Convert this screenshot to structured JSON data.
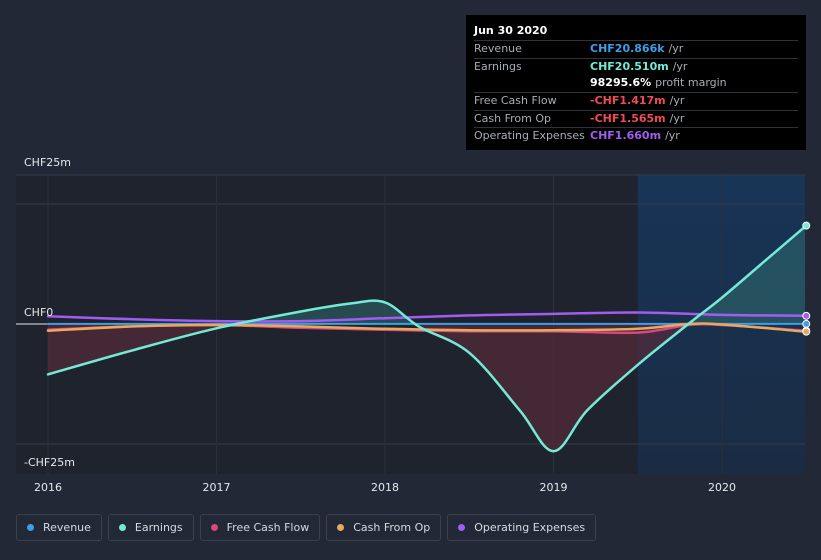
{
  "tooltip": {
    "date": "Jun 30 2020",
    "rows": [
      {
        "label": "Revenue",
        "value": "CHF20.866k",
        "unit": "/yr",
        "color": "#3d9fe8"
      },
      {
        "label": "Earnings",
        "value": "CHF20.510m",
        "unit": "/yr",
        "color": "#74ead6"
      },
      {
        "label": "",
        "value": "98295.6%",
        "unit": "profit margin",
        "color": "#ffffff"
      },
      {
        "label": "Free Cash Flow",
        "value": "-CHF1.417m",
        "unit": "/yr",
        "color": "#ef4b57"
      },
      {
        "label": "Cash From Op",
        "value": "-CHF1.565m",
        "unit": "/yr",
        "color": "#ef4b57"
      },
      {
        "label": "Operating Expenses",
        "value": "CHF1.660m",
        "unit": "/yr",
        "color": "#a35cf1"
      }
    ]
  },
  "legend": [
    {
      "label": "Revenue",
      "color": "#3d9fe8"
    },
    {
      "label": "Earnings",
      "color": "#74ead6"
    },
    {
      "label": "Free Cash Flow",
      "color": "#d9477d"
    },
    {
      "label": "Cash From Op",
      "color": "#e7a95d"
    },
    {
      "label": "Operating Expenses",
      "color": "#a35cf1"
    }
  ],
  "chart_data": {
    "type": "line",
    "title": "",
    "xlabel": "",
    "ylabel": "",
    "y_tick_labels": [
      "CHF25m",
      "CHF0",
      "-CHF25m"
    ],
    "y_tick_values": [
      25,
      0,
      -25
    ],
    "x_tick_labels": [
      "2016",
      "2017",
      "2018",
      "2019",
      "2020"
    ],
    "x_tick_values": [
      2016,
      2017,
      2018,
      2019,
      2020
    ],
    "xlim": [
      2015.8,
      2020.5
    ],
    "ylim": [
      -30,
      30
    ],
    "forecast_shade_start": 2019.5,
    "grid": true,
    "legend_position": "bottom",
    "series": [
      {
        "name": "Revenue",
        "color": "#3d9fe8",
        "points": [
          [
            2016,
            0.02
          ],
          [
            2017,
            0.02
          ],
          [
            2018,
            0.02
          ],
          [
            2019,
            0.02
          ],
          [
            2019.5,
            0.02
          ],
          [
            2020,
            0.02
          ],
          [
            2020.5,
            0.02
          ]
        ]
      },
      {
        "name": "Earnings",
        "color": "#74ead6",
        "fill": true,
        "points": [
          [
            2016,
            -10.5
          ],
          [
            2016.5,
            -5.5
          ],
          [
            2017,
            -0.9
          ],
          [
            2017.5,
            2.6
          ],
          [
            2017.8,
            4.3
          ],
          [
            2018,
            4.5
          ],
          [
            2018.2,
            -0.5
          ],
          [
            2018.5,
            -6
          ],
          [
            2018.8,
            -18
          ],
          [
            2019,
            -26.5
          ],
          [
            2019.2,
            -18
          ],
          [
            2019.5,
            -8.5
          ],
          [
            2019.8,
            0
          ],
          [
            2020,
            5.5
          ],
          [
            2020.25,
            13
          ],
          [
            2020.5,
            20.5
          ]
        ]
      },
      {
        "name": "Free Cash Flow",
        "color": "#d9477d",
        "points": [
          [
            2016,
            -1.2
          ],
          [
            2016.5,
            -0.5
          ],
          [
            2017,
            -0.2
          ],
          [
            2017.5,
            -0.8
          ],
          [
            2018,
            -1.2
          ],
          [
            2018.5,
            -1.5
          ],
          [
            2019,
            -1.5
          ],
          [
            2019.5,
            -1.8
          ],
          [
            2019.8,
            -0.2
          ],
          [
            2020,
            -0.2
          ],
          [
            2020.5,
            -1.4
          ]
        ]
      },
      {
        "name": "Cash From Op",
        "color": "#e7a95d",
        "points": [
          [
            2016,
            -1.4
          ],
          [
            2016.5,
            -0.5
          ],
          [
            2017,
            -0.2
          ],
          [
            2017.5,
            -0.5
          ],
          [
            2018,
            -1.0
          ],
          [
            2018.5,
            -1.3
          ],
          [
            2019,
            -1.3
          ],
          [
            2019.5,
            -1.0
          ],
          [
            2019.8,
            0.0
          ],
          [
            2020,
            -0.1
          ],
          [
            2020.5,
            -1.6
          ]
        ]
      },
      {
        "name": "Operating Expenses",
        "color": "#a35cf1",
        "points": [
          [
            2016,
            1.6
          ],
          [
            2016.5,
            1.0
          ],
          [
            2017,
            0.6
          ],
          [
            2017.5,
            0.6
          ],
          [
            2018,
            1.2
          ],
          [
            2018.5,
            1.8
          ],
          [
            2019,
            2.1
          ],
          [
            2019.5,
            2.4
          ],
          [
            2020,
            1.9
          ],
          [
            2020.5,
            1.7
          ]
        ]
      }
    ]
  }
}
